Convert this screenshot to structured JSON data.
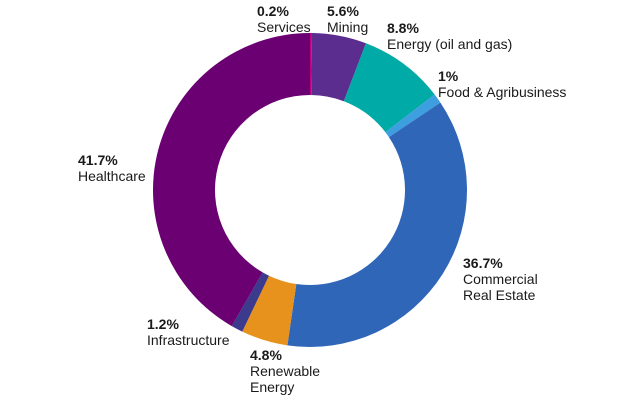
{
  "chart_data": {
    "type": "donut",
    "categories": [
      "Services",
      "Mining",
      "Energy (oil and gas)",
      "Food & Agribusiness",
      "Commercial Real Estate",
      "Renewable Energy",
      "Infrastructure",
      "Healthcare"
    ],
    "values": [
      0.2,
      5.6,
      8.8,
      1,
      36.7,
      4.8,
      1.2,
      41.7
    ],
    "value_labels": [
      "0.2%",
      "5.6%",
      "8.8%",
      "1%",
      "36.7%",
      "4.8%",
      "1.2%",
      "41.7%"
    ],
    "colors": [
      "#c2007f",
      "#5a2d8f",
      "#00aaa6",
      "#3d9ee0",
      "#2f66b8",
      "#e8921e",
      "#3b3a8c",
      "#6a0071"
    ]
  }
}
